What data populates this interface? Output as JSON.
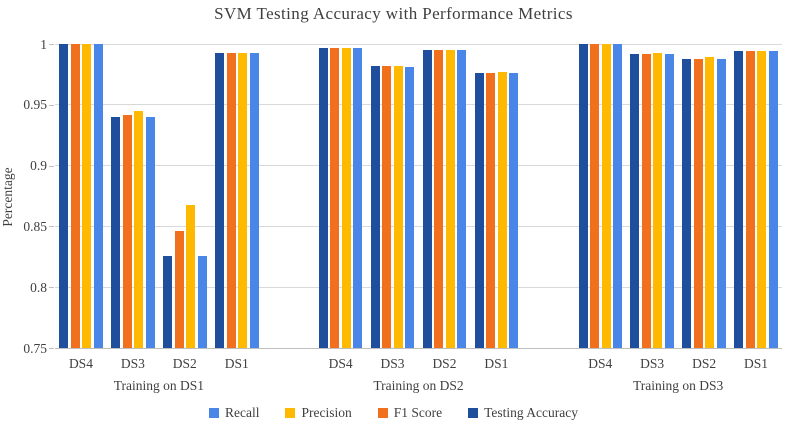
{
  "title": "SVM Testing Accuracy with Performance Metrics",
  "chart_data": {
    "type": "bar",
    "title": "SVM Testing Accuracy with Performance Metrics",
    "xlabel": "",
    "ylabel": "Percentage",
    "ylim": [
      0.75,
      1.0
    ],
    "ytick_step": 0.05,
    "yticks": [
      "1",
      "0.95",
      "0.9",
      "0.85",
      "0.8",
      "0.75"
    ],
    "grid": true,
    "legend_position": "bottom",
    "groups": [
      {
        "label": "Training on DS1",
        "categories": [
          "DS4",
          "DS3",
          "DS2",
          "DS1"
        ]
      },
      {
        "label": "Training on DS2",
        "categories": [
          "DS4",
          "DS3",
          "DS2",
          "DS1"
        ]
      },
      {
        "label": "Training on DS3",
        "categories": [
          "DS4",
          "DS3",
          "DS2",
          "DS1"
        ]
      }
    ],
    "series": [
      {
        "name": "Testing Accuracy",
        "color": "#1f4e9c",
        "values": [
          [
            1.0,
            0.94,
            0.826,
            0.993
          ],
          [
            0.997,
            0.982,
            0.995,
            0.976
          ],
          [
            1.0,
            0.992,
            0.988,
            0.994
          ]
        ]
      },
      {
        "name": "F1 Score",
        "color": "#f0701e",
        "values": [
          [
            1.0,
            0.942,
            0.846,
            0.993
          ],
          [
            0.997,
            0.982,
            0.995,
            0.976
          ],
          [
            1.0,
            0.992,
            0.988,
            0.994
          ]
        ]
      },
      {
        "name": "Precision",
        "color": "#ffb900",
        "values": [
          [
            1.0,
            0.945,
            0.868,
            0.993
          ],
          [
            0.997,
            0.982,
            0.995,
            0.977
          ],
          [
            1.0,
            0.993,
            0.989,
            0.994
          ]
        ]
      },
      {
        "name": "Recall",
        "color": "#4a86e8",
        "values": [
          [
            1.0,
            0.94,
            0.826,
            0.993
          ],
          [
            0.997,
            0.981,
            0.995,
            0.976
          ],
          [
            1.0,
            0.992,
            0.988,
            0.994
          ]
        ]
      }
    ],
    "legend": [
      {
        "label": "Recall",
        "color": "#4a86e8"
      },
      {
        "label": "Precision",
        "color": "#ffb900"
      },
      {
        "label": "F1 Score",
        "color": "#f0701e"
      },
      {
        "label": "Testing Accuracy",
        "color": "#1f4e9c"
      }
    ]
  }
}
